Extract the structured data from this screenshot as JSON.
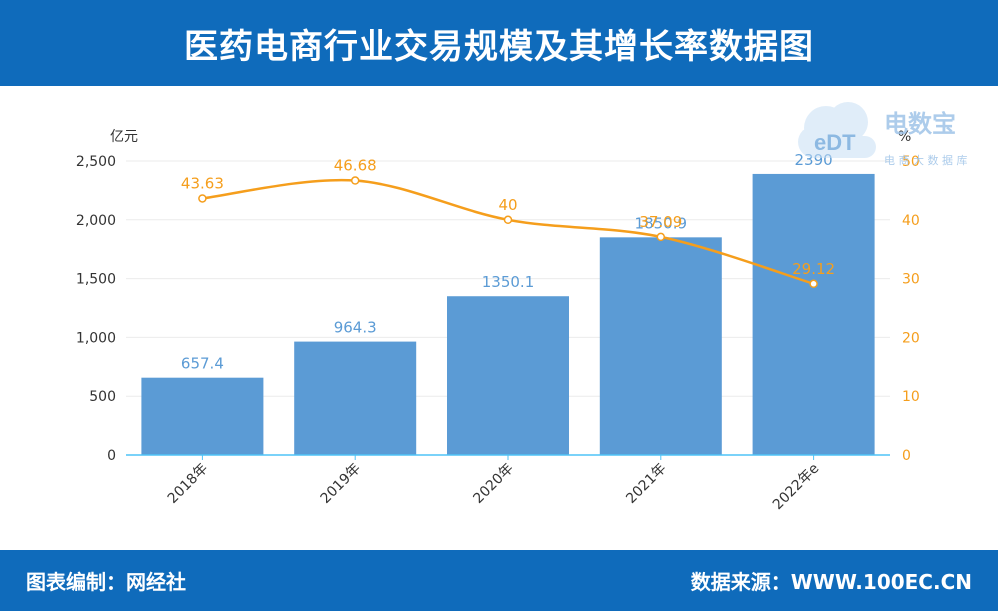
{
  "header": {
    "title": "医药电商行业交易规模及其增长率数据图"
  },
  "footer": {
    "left": "图表编制：网经社",
    "right": "数据来源：WWW.100EC.CN"
  },
  "watermark": {
    "logo_text": "eDT",
    "brand": "电数宝",
    "tagline": "电 商 大 数 据 库"
  },
  "colors": {
    "header_bg": "#0f6bbb",
    "bar": "#5b9bd5",
    "bar_label": "#5b9bd5",
    "line": "#f59e1c",
    "axis_x": "#4fc3f7",
    "grid": "#ebebeb"
  },
  "chart_data": {
    "type": "bar",
    "categories": [
      "2018年",
      "2019年",
      "2020年",
      "2021年",
      "2022年e"
    ],
    "series": [
      {
        "type": "bar",
        "values": [
          657.4,
          964.3,
          1350.1,
          1850.9,
          2390
        ],
        "axis": "left"
      },
      {
        "type": "line",
        "values": [
          43.63,
          46.68,
          40,
          37.09,
          29.12
        ],
        "axis": "right"
      }
    ],
    "y_left": {
      "label": "亿元",
      "min": 0,
      "max": 2500,
      "ticks": [
        "0",
        "500",
        "1,000",
        "1,500",
        "2,000",
        "2,500"
      ]
    },
    "y_right": {
      "label": "%",
      "min": 0,
      "max": 50,
      "ticks": [
        "0",
        "10",
        "20",
        "30",
        "40",
        "50"
      ]
    },
    "bar_labels": [
      "657.4",
      "964.3",
      "1350.1",
      "1850.9",
      "2390"
    ],
    "line_labels": [
      "43.63",
      "46.68",
      "40",
      "37.09",
      "29.12"
    ],
    "grid": true
  }
}
